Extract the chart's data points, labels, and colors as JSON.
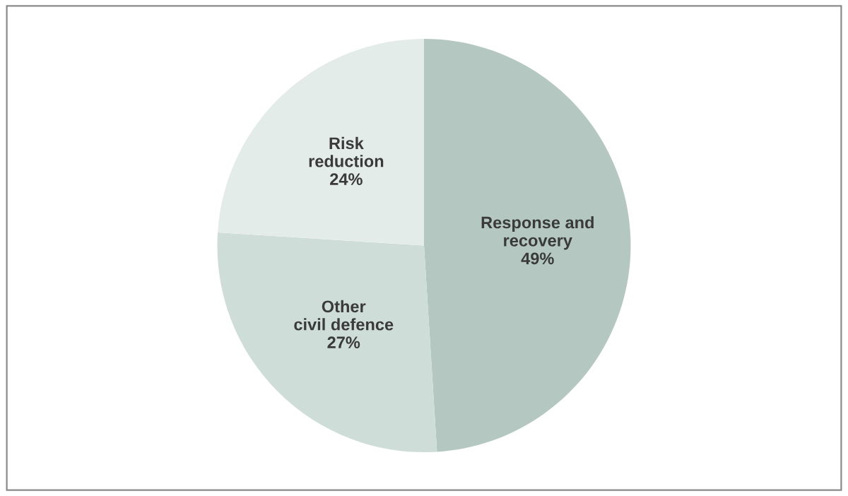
{
  "chart_data": {
    "type": "pie",
    "categories": [
      "Response and\nrecovery",
      "Other\ncivil defence",
      "Risk\nreduction"
    ],
    "values": [
      49,
      27,
      24
    ],
    "value_labels": [
      "49%",
      "27%",
      "24%"
    ],
    "colors": [
      "#b4c8c1",
      "#cfddd8",
      "#e4ece9"
    ],
    "legend": false
  }
}
